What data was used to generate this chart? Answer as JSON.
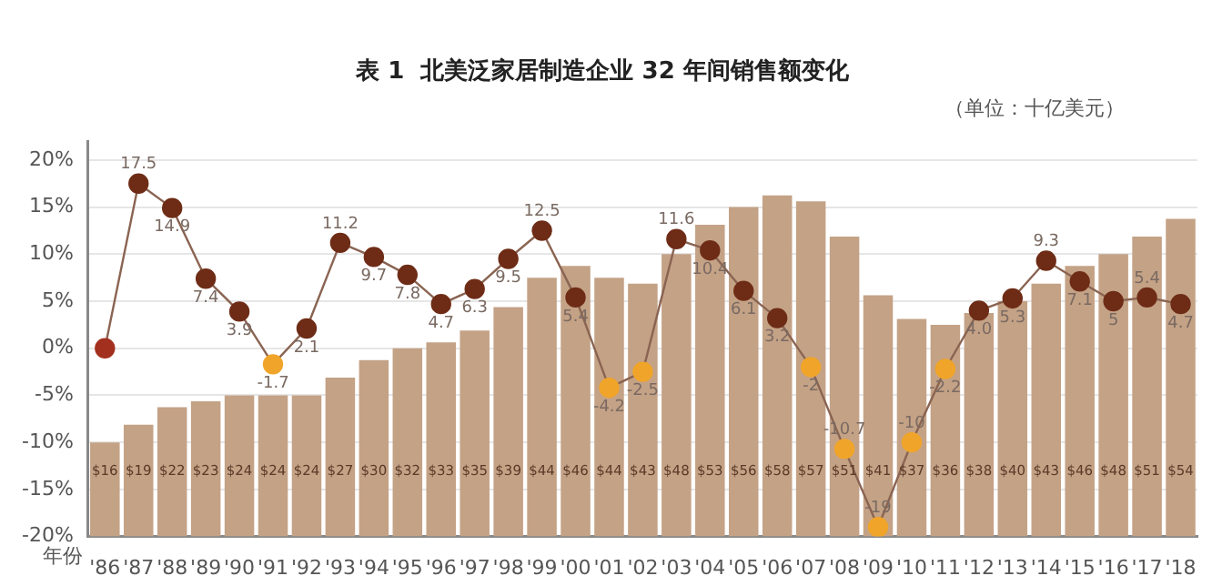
{
  "chart_data": {
    "type": "bar",
    "title": "表 1  北美泛家居制造企业 32 年间销售额变化",
    "annotations": [
      "（单位：十亿美元）"
    ],
    "xlabel": "年份",
    "categories": [
      "'86",
      "'87",
      "'88",
      "'89",
      "'90",
      "'91",
      "'92",
      "'93",
      "'94",
      "'95",
      "'96",
      "'97",
      "'98",
      "'99",
      "'00",
      "'01",
      "'02",
      "'03",
      "'04",
      "'05",
      "'06",
      "'07",
      "'08",
      "'09",
      "'10",
      "'11",
      "'12",
      "'13",
      "'14",
      "'15",
      "'16",
      "'17",
      "'18"
    ],
    "series": [
      {
        "axis": "y2",
        "color": "#c4a286",
        "values": [
          16,
          19,
          22,
          23,
          24,
          24,
          24,
          27,
          30,
          32,
          33,
          35,
          39,
          44,
          46,
          44,
          43,
          48,
          53,
          56,
          58,
          57,
          51,
          41,
          37,
          36,
          38,
          40,
          43,
          46,
          48,
          51,
          54
        ],
        "value_labels": [
          "$16",
          "$19",
          "$22",
          "$23",
          "$24",
          "$24",
          "$24",
          "$27",
          "$30",
          "$32",
          "$33",
          "$35",
          "$39",
          "$44",
          "$46",
          "$44",
          "$43",
          "$48",
          "$53",
          "$56",
          "$58",
          "$57",
          "$51",
          "$41",
          "$37",
          "$36",
          "$38",
          "$40",
          "$43",
          "$46",
          "$48",
          "$51",
          "$54"
        ]
      },
      {
        "type": "line",
        "color": "#8a6452",
        "colors": [
          "#a3301e",
          "#6e2c16",
          "#6e2c16",
          "#6e2c16",
          "#6e2c16",
          "#f0a52a",
          "#6e2c16",
          "#6e2c16",
          "#6e2c16",
          "#6e2c16",
          "#6e2c16",
          "#6e2c16",
          "#6e2c16",
          "#6e2c16",
          "#6e2c16",
          "#f0a52a",
          "#f0a52a",
          "#6e2c16",
          "#6e2c16",
          "#6e2c16",
          "#6e2c16",
          "#f0a52a",
          "#f0a52a",
          "#f0a52a",
          "#f0a52a",
          "#f0a52a",
          "#6e2c16",
          "#6e2c16",
          "#6e2c16",
          "#6e2c16",
          "#6e2c16",
          "#6e2c16",
          "#6e2c16"
        ],
        "values": [
          0,
          17.5,
          14.9,
          7.4,
          3.9,
          -1.7,
          2.1,
          11.2,
          9.7,
          7.8,
          4.7,
          6.3,
          9.5,
          12.5,
          5.4,
          -4.2,
          -2.5,
          11.6,
          10.4,
          6.1,
          3.2,
          -2,
          -10.7,
          -19,
          -10,
          -2.2,
          4.0,
          5.3,
          9.3,
          7.1,
          5,
          5.4,
          4.7
        ],
        "value_labels": [
          null,
          "17.5",
          "14.9",
          "7.4",
          "3.9",
          "-1.7",
          "2.1",
          "11.2",
          "9.7",
          "7.8",
          "4.7",
          "6.3",
          "9.5",
          "12.5",
          "5.4",
          "-4.2",
          "-2.5",
          "11.6",
          "10.4",
          "6.1",
          "3.2",
          "-2",
          "-10.7",
          "-19",
          "-10",
          "-2.2",
          "4.0",
          "5.3",
          "9.3",
          "7.1",
          "5",
          "5.4",
          "4.7"
        ]
      }
    ],
    "ylim": [
      -20,
      22
    ],
    "yticks": [
      {
        "value": -20,
        "label": "-20%"
      },
      {
        "value": -15,
        "label": "-15%"
      },
      {
        "value": -10,
        "label": "-10%"
      },
      {
        "value": -5,
        "label": "-5%"
      },
      {
        "value": 0,
        "label": "0%"
      },
      {
        "value": 5,
        "label": "5%"
      },
      {
        "value": 10,
        "label": "10%"
      },
      {
        "value": 15,
        "label": "15%"
      },
      {
        "value": 20,
        "label": "20%"
      }
    ],
    "y2lim": [
      0,
      67.2
    ],
    "grid": "y",
    "marker": "circle",
    "line_style": "solid"
  }
}
